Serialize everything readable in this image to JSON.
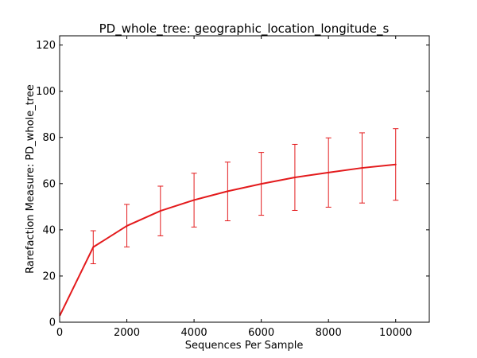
{
  "chart_data": {
    "type": "line",
    "title": "PD_whole_tree: geographic_location_longitude_s",
    "xlabel": "Sequences Per Sample",
    "ylabel": "Rarefaction Measure: PD_whole_tree",
    "xlim": [
      0,
      11000
    ],
    "ylim": [
      0,
      124
    ],
    "xticks": [
      0,
      2000,
      4000,
      6000,
      8000,
      10000
    ],
    "yticks": [
      0,
      20,
      40,
      60,
      80,
      100,
      120
    ],
    "grid": false,
    "legend": "none",
    "line_color": "#e31a1c",
    "series": [
      {
        "x": [
          10,
          1000,
          2000,
          3000,
          4000,
          5000,
          6000,
          7000,
          8000,
          9000,
          10000
        ],
        "y": [
          3.0,
          32.5,
          41.7,
          48.2,
          52.9,
          56.7,
          59.9,
          62.7,
          64.8,
          66.8,
          68.3
        ],
        "err_low": [
          3.0,
          25.3,
          32.6,
          37.4,
          41.2,
          43.9,
          46.3,
          48.4,
          49.8,
          51.6,
          52.8
        ],
        "err_high": [
          3.0,
          39.6,
          51.0,
          58.9,
          64.5,
          69.3,
          73.5,
          77.0,
          79.8,
          82.0,
          83.8
        ]
      }
    ]
  }
}
